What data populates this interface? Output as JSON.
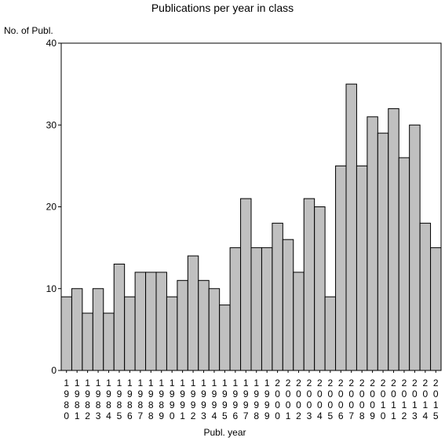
{
  "chart_data": {
    "type": "bar",
    "title": "Publications per year in class",
    "xlabel": "Publ. year",
    "ylabel": "No. of Publ.",
    "ylim": [
      0,
      40
    ],
    "yticks": [
      0,
      10,
      20,
      30,
      40
    ],
    "grid": false,
    "categories": [
      "1980",
      "1981",
      "1982",
      "1983",
      "1984",
      "1985",
      "1986",
      "1987",
      "1988",
      "1989",
      "1990",
      "1991",
      "1992",
      "1993",
      "1994",
      "1995",
      "1996",
      "1997",
      "1998",
      "1999",
      "2000",
      "2001",
      "2002",
      "2003",
      "2004",
      "2005",
      "2006",
      "2007",
      "2008",
      "2009",
      "2010",
      "2011",
      "2012",
      "2013",
      "2014",
      "2015"
    ],
    "values": [
      9,
      10,
      7,
      10,
      7,
      13,
      9,
      12,
      12,
      12,
      9,
      11,
      14,
      11,
      10,
      8,
      15,
      21,
      15,
      15,
      18,
      16,
      12,
      21,
      20,
      9,
      25,
      35,
      25,
      31,
      29,
      32,
      26,
      30,
      18,
      15
    ],
    "colors": {
      "bar_fill": "#c0c0c0",
      "bar_stroke": "#000000",
      "axis": "#000000"
    }
  }
}
